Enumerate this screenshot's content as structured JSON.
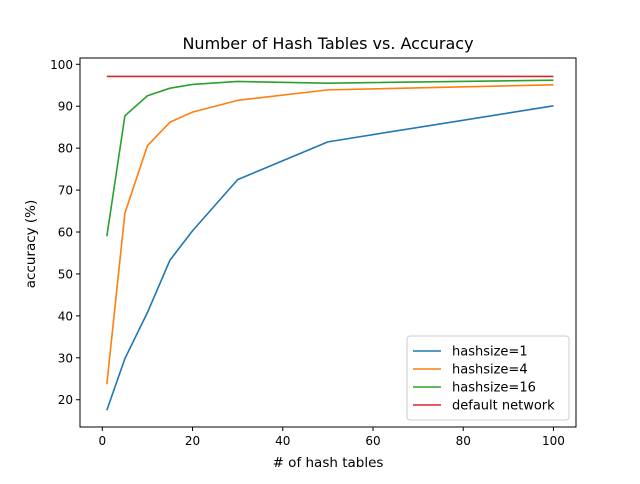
{
  "chart_data": {
    "type": "line",
    "title": "Number of Hash Tables vs. Accuracy",
    "xlabel": "# of hash tables",
    "ylabel": "accuracy (%)",
    "xlim": [
      -4.95,
      105.0
    ],
    "ylim": [
      13.5,
      101.5
    ],
    "xticks": [
      0,
      20,
      40,
      60,
      80,
      100
    ],
    "yticks": [
      20,
      30,
      40,
      50,
      60,
      70,
      80,
      90,
      100
    ],
    "grid": false,
    "legend_position": "lower right",
    "series": [
      {
        "name": "hashsize=1",
        "color": "#1f77b4",
        "x": [
          1,
          5,
          10,
          15,
          20,
          30,
          50,
          100
        ],
        "y": [
          17.5,
          29.8,
          40.8,
          53.3,
          60.3,
          72.5,
          81.5,
          90.1
        ]
      },
      {
        "name": "hashsize=4",
        "color": "#ff7f0e",
        "x": [
          1,
          5,
          10,
          15,
          20,
          30,
          50,
          100
        ],
        "y": [
          23.7,
          64.5,
          80.6,
          86.2,
          88.6,
          91.4,
          93.9,
          95.1
        ]
      },
      {
        "name": "hashsize=16",
        "color": "#2ca02c",
        "x": [
          1,
          5,
          10,
          15,
          20,
          30,
          50,
          100
        ],
        "y": [
          59.0,
          87.7,
          92.5,
          94.3,
          95.2,
          95.9,
          95.5,
          96.2
        ]
      },
      {
        "name": "default network",
        "color": "#d62728",
        "x": [
          1,
          100
        ],
        "y": [
          97.1,
          97.1
        ]
      }
    ]
  }
}
